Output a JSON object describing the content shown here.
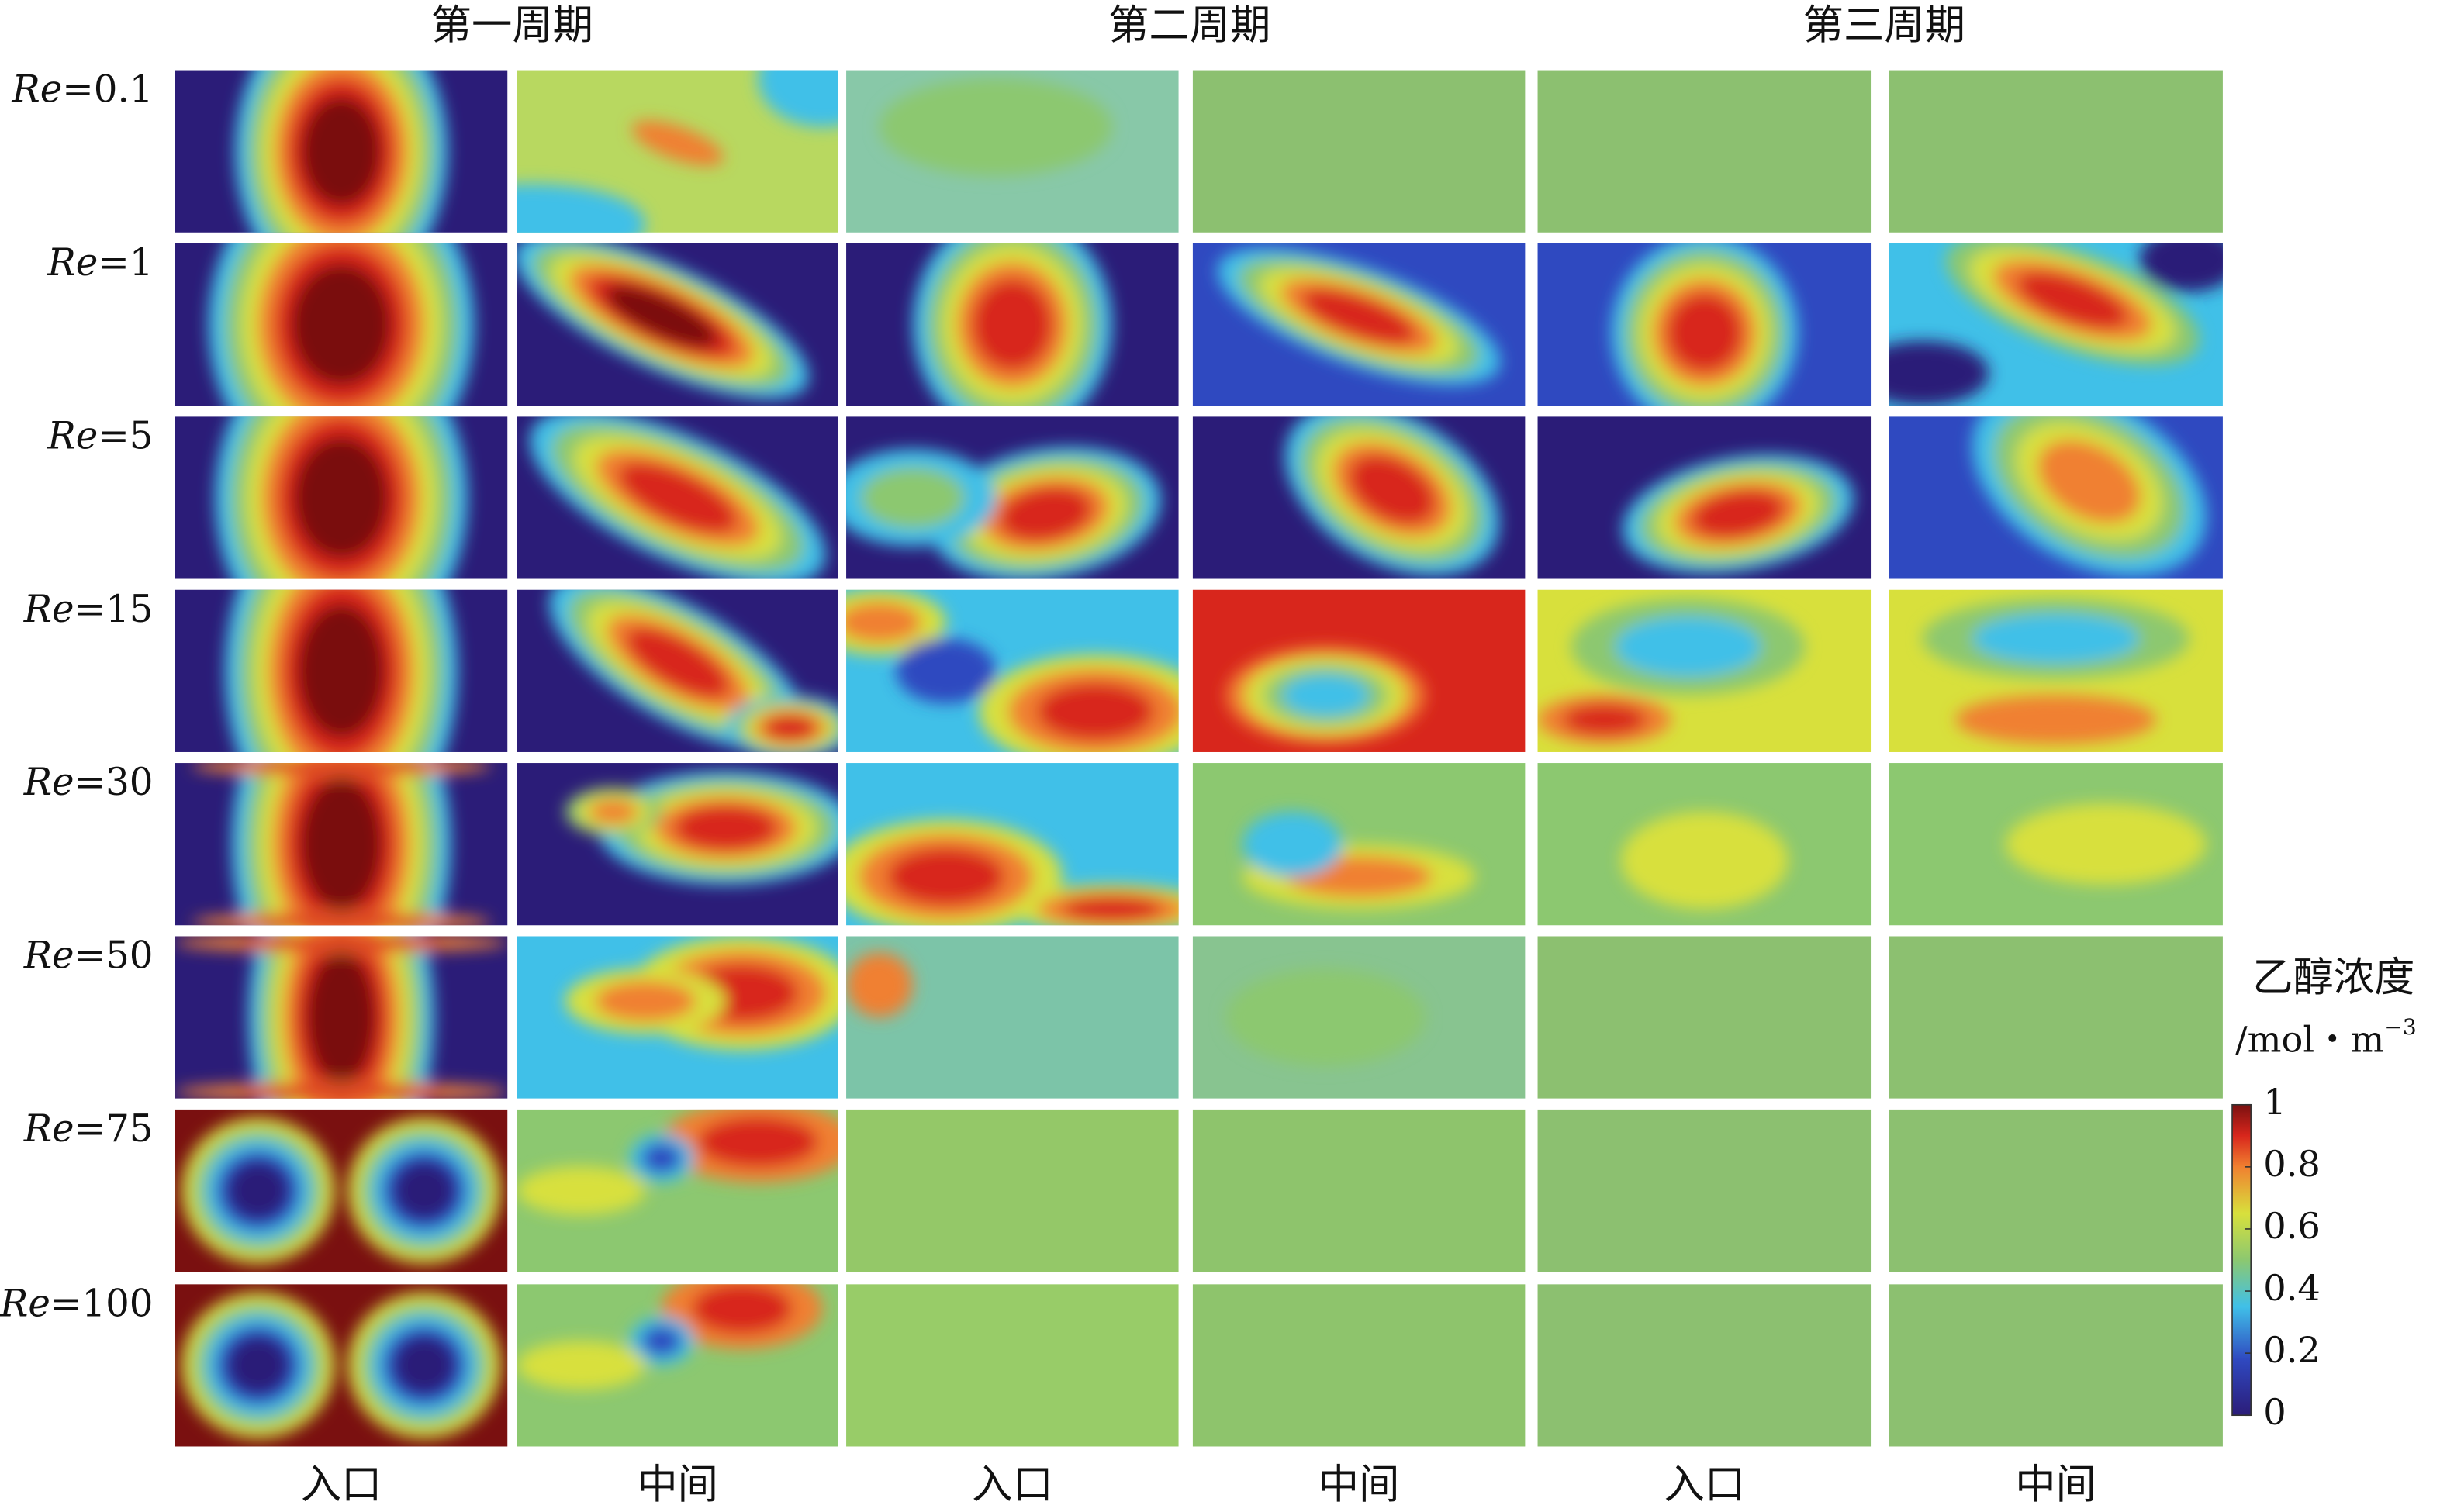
{
  "column_groups": [
    "第一周期",
    "第二周期",
    "第三周期"
  ],
  "rows": [
    {
      "italic": "Re",
      "text": "=0.1"
    },
    {
      "italic": "Re",
      "text": "=1"
    },
    {
      "italic": "Re",
      "text": "=5"
    },
    {
      "italic": "Re",
      "text": "=15"
    },
    {
      "italic": "Re",
      "text": "=30"
    },
    {
      "italic": "Re",
      "text": "=50"
    },
    {
      "italic": "Re",
      "text": "=75"
    },
    {
      "italic": "Re",
      "text": "=100"
    }
  ],
  "column_labels": [
    "入口",
    "中间",
    "入口",
    "中间",
    "入口",
    "中间"
  ],
  "colorbar": {
    "title": "乙醇浓度",
    "unit": "/mol・m",
    "unit_exponent": "−3",
    "lim": [
      0,
      1
    ],
    "ticks": [
      1,
      0.8,
      0.6,
      0.4,
      0.2,
      0
    ]
  }
}
